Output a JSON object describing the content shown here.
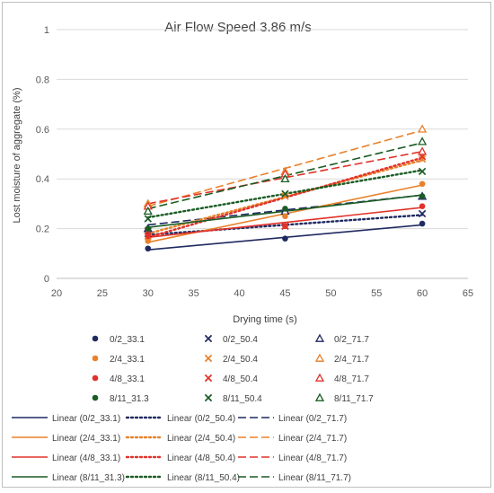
{
  "chart_data": {
    "type": "scatter",
    "title": "Air Flow Speed 3.86 m/s",
    "xlabel": "Drying time (s)",
    "ylabel": "Lost moisture of aggregate (%)",
    "xlim": [
      20,
      65
    ],
    "ylim": [
      0,
      1
    ],
    "x_ticks": [
      20,
      25,
      30,
      35,
      40,
      45,
      50,
      55,
      60,
      65
    ],
    "y_ticks": [
      0,
      0.2,
      0.4,
      0.6,
      0.8,
      1
    ],
    "grid": "horizontal",
    "legend_position": "bottom",
    "x": [
      30,
      45,
      60
    ],
    "series": [
      {
        "name": "0/2_33.1",
        "marker": "circle",
        "color": "#1f2a60",
        "values": [
          0.12,
          0.16,
          0.22
        ]
      },
      {
        "name": "0/2_50.4",
        "marker": "x",
        "color": "#1f2a60",
        "values": [
          0.18,
          0.21,
          0.26
        ]
      },
      {
        "name": "0/2_71.7",
        "marker": "triangle",
        "color": "#1f2a60",
        "values": [
          0.2,
          0.27,
          0.33
        ]
      },
      {
        "name": "2/4_33.1",
        "marker": "circle",
        "color": "#e8812a",
        "values": [
          0.15,
          0.25,
          0.38
        ]
      },
      {
        "name": "2/4_50.4",
        "marker": "x",
        "color": "#e8812a",
        "values": [
          0.17,
          0.33,
          0.48
        ]
      },
      {
        "name": "2/4_71.7",
        "marker": "triangle",
        "color": "#e8812a",
        "values": [
          0.3,
          0.43,
          0.6
        ]
      },
      {
        "name": "4/8_33.1",
        "marker": "circle",
        "color": "#e0322a",
        "values": [
          0.17,
          0.21,
          0.29
        ]
      },
      {
        "name": "4/8_50.4",
        "marker": "x",
        "color": "#e0322a",
        "values": [
          0.19,
          0.21,
          0.49
        ]
      },
      {
        "name": "4/8_71.7",
        "marker": "triangle",
        "color": "#e0322a",
        "values": [
          0.29,
          0.42,
          0.51
        ]
      },
      {
        "name": "8/11_31.3",
        "marker": "circle",
        "color": "#1a5c24",
        "values": [
          0.2,
          0.28,
          0.33
        ]
      },
      {
        "name": "8/11_50.4",
        "marker": "x",
        "color": "#1a5c24",
        "values": [
          0.24,
          0.34,
          0.43
        ]
      },
      {
        "name": "8/11_71.7",
        "marker": "triangle",
        "color": "#1a5c24",
        "values": [
          0.27,
          0.4,
          0.55
        ]
      }
    ],
    "trendlines": [
      {
        "name": "Linear (0/2_33.1)",
        "style": "solid",
        "color": "#1f2a60",
        "x": [
          30,
          60
        ],
        "values": [
          0.115,
          0.215
        ]
      },
      {
        "name": "Linear (0/2_50.4)",
        "style": "dotted",
        "color": "#1f2a60",
        "x": [
          30,
          60
        ],
        "values": [
          0.175,
          0.255
        ]
      },
      {
        "name": "Linear (0/2_71.7)",
        "style": "dashed",
        "color": "#1f2a60",
        "x": [
          30,
          60
        ],
        "values": [
          0.215,
          0.335
        ]
      },
      {
        "name": "Linear (2/4_33.1)",
        "style": "solid",
        "color": "#e8812a",
        "x": [
          30,
          60
        ],
        "values": [
          0.145,
          0.375
        ]
      },
      {
        "name": "Linear (2/4_50.4)",
        "style": "dotted",
        "color": "#e8812a",
        "x": [
          30,
          60
        ],
        "values": [
          0.18,
          0.475
        ]
      },
      {
        "name": "Linear (2/4_71.7)",
        "style": "dashed",
        "color": "#e8812a",
        "x": [
          30,
          60
        ],
        "values": [
          0.29,
          0.595
        ]
      },
      {
        "name": "Linear (4/8_33.1)",
        "style": "solid",
        "color": "#e0322a",
        "x": [
          30,
          60
        ],
        "values": [
          0.165,
          0.285
        ]
      },
      {
        "name": "Linear (4/8_50.4)",
        "style": "dotted",
        "color": "#e0322a",
        "x": [
          30,
          60
        ],
        "values": [
          0.165,
          0.485
        ]
      },
      {
        "name": "Linear (4/8_71.7)",
        "style": "dashed",
        "color": "#e0322a",
        "x": [
          30,
          60
        ],
        "values": [
          0.3,
          0.51
        ]
      },
      {
        "name": "Linear (8/11_31.3)",
        "style": "solid",
        "color": "#1a5c24",
        "x": [
          30,
          60
        ],
        "values": [
          0.205,
          0.335
        ]
      },
      {
        "name": "Linear (8/11_50.4)",
        "style": "dotted",
        "color": "#1a5c24",
        "x": [
          30,
          60
        ],
        "values": [
          0.245,
          0.435
        ]
      },
      {
        "name": "Linear (8/11_71.7)",
        "style": "dashed",
        "color": "#1a5c24",
        "x": [
          30,
          60
        ],
        "values": [
          0.28,
          0.545
        ]
      }
    ]
  }
}
